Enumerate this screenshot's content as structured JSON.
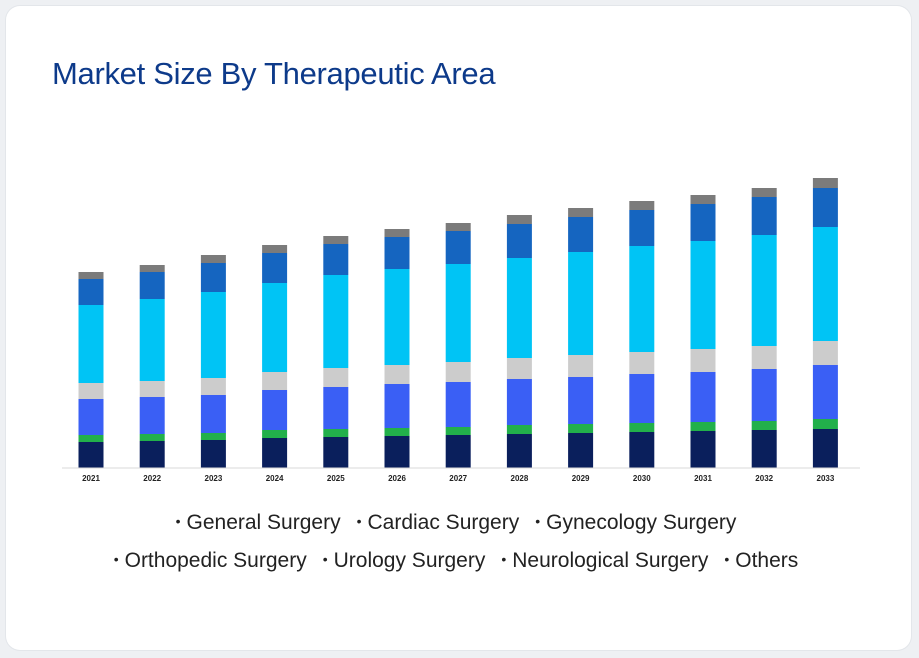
{
  "card": {
    "title": "Market Size By Therapeutic Area"
  },
  "chart_data": {
    "type": "bar",
    "stacked": true,
    "title": "Market Size By Therapeutic Area",
    "xlabel": "",
    "ylabel": "",
    "grid": false,
    "legend_placement": "bottom",
    "categories": [
      "2021",
      "2022",
      "2023",
      "2024",
      "2025",
      "2026",
      "2027",
      "2028",
      "2029",
      "2030",
      "2031",
      "2032",
      "2033"
    ],
    "series": [
      {
        "name": "General Surgery",
        "color": "#0a1f5c",
        "values": [
          26,
          27,
          28,
          30,
          31,
          32,
          33,
          34,
          35,
          36,
          37,
          38,
          39
        ]
      },
      {
        "name": "Cardiac Surgery",
        "color": "#22b04b",
        "values": [
          7,
          7,
          7,
          8,
          8,
          8,
          8,
          9,
          9,
          9,
          9,
          9,
          10
        ]
      },
      {
        "name": "Gynecology Surgery",
        "color": "#3a5ff5",
        "values": [
          36,
          37,
          38,
          40,
          42,
          44,
          45,
          46,
          47,
          49,
          50,
          52,
          54
        ]
      },
      {
        "name": "Orthopedic Surgery",
        "color": "#cccccc",
        "values": [
          16,
          16,
          17,
          18,
          19,
          19,
          20,
          21,
          22,
          22,
          23,
          23,
          24
        ]
      },
      {
        "name": "Urology Surgery",
        "color": "#00c4f5",
        "values": [
          78,
          82,
          86,
          89,
          93,
          96,
          98,
          100,
          103,
          106,
          108,
          111,
          114
        ]
      },
      {
        "name": "Neurological Surgery",
        "color": "#1565c0",
        "values": [
          26,
          27,
          29,
          30,
          31,
          32,
          33,
          34,
          35,
          36,
          37,
          38,
          39
        ]
      },
      {
        "name": "Others",
        "color": "#7b7b7b",
        "values": [
          7,
          7,
          8,
          8,
          8,
          8,
          8,
          9,
          9,
          9,
          9,
          9,
          10
        ]
      }
    ],
    "ylim": [
      0,
      300
    ]
  }
}
